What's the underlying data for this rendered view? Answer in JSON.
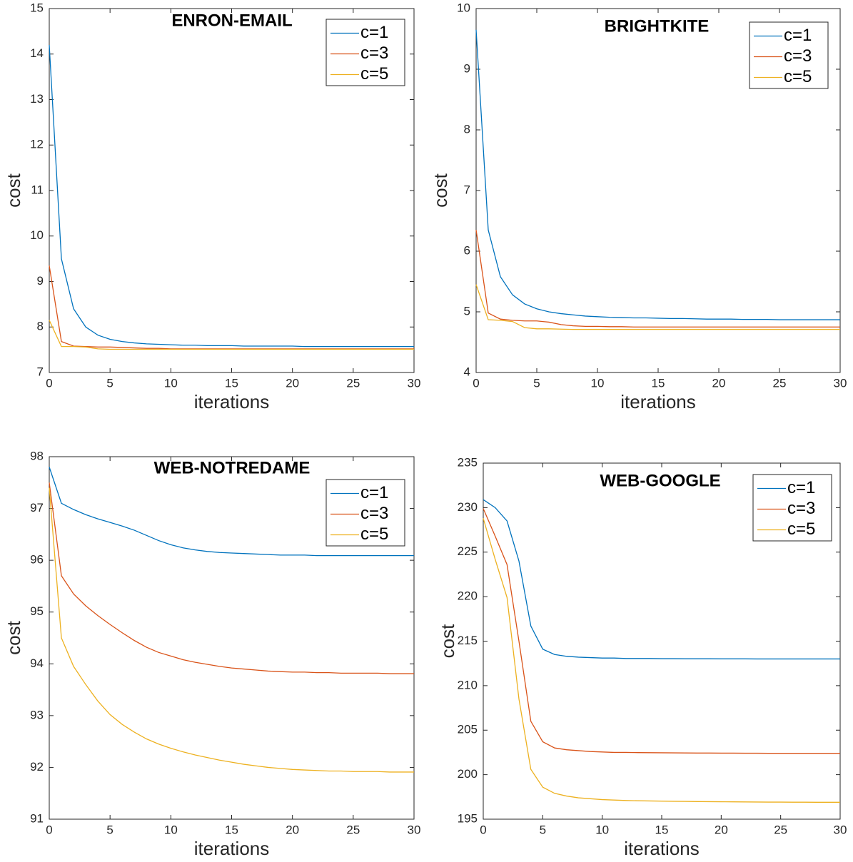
{
  "chart_data": [
    {
      "type": "line",
      "title": "ENRON-EMAIL",
      "xlabel": "iterations",
      "ylabel": "cost",
      "x": [
        0,
        1,
        2,
        3,
        4,
        5,
        6,
        7,
        8,
        9,
        10,
        11,
        12,
        13,
        14,
        15,
        16,
        17,
        18,
        19,
        20,
        21,
        22,
        23,
        24,
        25,
        26,
        27,
        28,
        29,
        30
      ],
      "xlim": [
        0,
        30
      ],
      "xticks": [
        0,
        5,
        10,
        15,
        20,
        25,
        30
      ],
      "ylim": [
        7,
        15
      ],
      "yticks": [
        7,
        8,
        9,
        10,
        11,
        12,
        13,
        14,
        15
      ],
      "legend": "upper right",
      "series": [
        {
          "name": "c=1",
          "color": "#0072bd",
          "values": [
            14.2,
            9.5,
            8.4,
            8.0,
            7.82,
            7.73,
            7.68,
            7.65,
            7.63,
            7.62,
            7.61,
            7.6,
            7.6,
            7.59,
            7.59,
            7.59,
            7.58,
            7.58,
            7.58,
            7.58,
            7.58,
            7.57,
            7.57,
            7.57,
            7.57,
            7.57,
            7.57,
            7.57,
            7.57,
            7.57,
            7.57
          ]
        },
        {
          "name": "c=3",
          "color": "#d95319",
          "values": [
            9.35,
            7.68,
            7.58,
            7.57,
            7.56,
            7.56,
            7.55,
            7.54,
            7.53,
            7.53,
            7.52,
            7.52,
            7.52,
            7.52,
            7.52,
            7.52,
            7.52,
            7.52,
            7.52,
            7.52,
            7.52,
            7.52,
            7.52,
            7.52,
            7.52,
            7.52,
            7.52,
            7.52,
            7.52,
            7.52,
            7.52
          ]
        },
        {
          "name": "c=5",
          "color": "#edb120",
          "values": [
            8.15,
            7.57,
            7.57,
            7.56,
            7.52,
            7.51,
            7.51,
            7.51,
            7.51,
            7.51,
            7.51,
            7.51,
            7.51,
            7.51,
            7.51,
            7.51,
            7.51,
            7.51,
            7.51,
            7.51,
            7.51,
            7.51,
            7.51,
            7.51,
            7.51,
            7.51,
            7.51,
            7.51,
            7.51,
            7.51,
            7.51
          ]
        }
      ]
    },
    {
      "type": "line",
      "title": "BRIGHTKITE",
      "xlabel": "iterations",
      "ylabel": "cost",
      "x": [
        0,
        1,
        2,
        3,
        4,
        5,
        6,
        7,
        8,
        9,
        10,
        11,
        12,
        13,
        14,
        15,
        16,
        17,
        18,
        19,
        20,
        21,
        22,
        23,
        24,
        25,
        26,
        27,
        28,
        29,
        30
      ],
      "xlim": [
        0,
        30
      ],
      "xticks": [
        0,
        5,
        10,
        15,
        20,
        25,
        30
      ],
      "ylim": [
        4,
        10
      ],
      "yticks": [
        4,
        5,
        6,
        7,
        8,
        9,
        10
      ],
      "legend": "upper right",
      "series": [
        {
          "name": "c=1",
          "color": "#0072bd",
          "values": [
            9.65,
            6.35,
            5.58,
            5.28,
            5.13,
            5.05,
            5.0,
            4.97,
            4.95,
            4.93,
            4.92,
            4.91,
            4.905,
            4.9,
            4.9,
            4.895,
            4.89,
            4.89,
            4.885,
            4.88,
            4.88,
            4.88,
            4.875,
            4.875,
            4.875,
            4.87,
            4.87,
            4.87,
            4.87,
            4.87,
            4.87
          ]
        },
        {
          "name": "c=3",
          "color": "#d95319",
          "values": [
            6.35,
            4.98,
            4.88,
            4.86,
            4.85,
            4.85,
            4.83,
            4.79,
            4.77,
            4.76,
            4.76,
            4.755,
            4.755,
            4.75,
            4.75,
            4.75,
            4.75,
            4.75,
            4.75,
            4.75,
            4.75,
            4.75,
            4.75,
            4.75,
            4.75,
            4.75,
            4.75,
            4.75,
            4.75,
            4.75,
            4.75
          ]
        },
        {
          "name": "c=5",
          "color": "#edb120",
          "values": [
            5.45,
            4.87,
            4.86,
            4.84,
            4.74,
            4.72,
            4.72,
            4.715,
            4.71,
            4.71,
            4.71,
            4.71,
            4.71,
            4.71,
            4.71,
            4.71,
            4.71,
            4.71,
            4.71,
            4.71,
            4.71,
            4.71,
            4.71,
            4.71,
            4.71,
            4.71,
            4.71,
            4.71,
            4.71,
            4.71,
            4.71
          ]
        }
      ]
    },
    {
      "type": "line",
      "title": "WEB-NOTREDAME",
      "xlabel": "iterations",
      "ylabel": "cost",
      "x": [
        0,
        1,
        2,
        3,
        4,
        5,
        6,
        7,
        8,
        9,
        10,
        11,
        12,
        13,
        14,
        15,
        16,
        17,
        18,
        19,
        20,
        21,
        22,
        23,
        24,
        25,
        26,
        27,
        28,
        29,
        30
      ],
      "xlim": [
        0,
        30
      ],
      "xticks": [
        0,
        5,
        10,
        15,
        20,
        25,
        30
      ],
      "ylim": [
        91,
        98
      ],
      "yticks": [
        91,
        92,
        93,
        94,
        95,
        96,
        97,
        98
      ],
      "legend": "upper right",
      "series": [
        {
          "name": "c=1",
          "color": "#0072bd",
          "values": [
            97.8,
            97.1,
            96.98,
            96.88,
            96.8,
            96.73,
            96.66,
            96.58,
            96.48,
            96.38,
            96.3,
            96.24,
            96.2,
            96.17,
            96.15,
            96.14,
            96.13,
            96.12,
            96.11,
            96.1,
            96.1,
            96.1,
            96.09,
            96.09,
            96.09,
            96.09,
            96.09,
            96.09,
            96.09,
            96.09,
            96.09
          ]
        },
        {
          "name": "c=3",
          "color": "#d95319",
          "values": [
            97.5,
            95.7,
            95.35,
            95.12,
            94.93,
            94.76,
            94.6,
            94.45,
            94.32,
            94.22,
            94.15,
            94.08,
            94.03,
            93.99,
            93.95,
            93.92,
            93.9,
            93.88,
            93.86,
            93.85,
            93.84,
            93.84,
            93.83,
            93.83,
            93.82,
            93.82,
            93.82,
            93.82,
            93.81,
            93.81,
            93.81
          ]
        },
        {
          "name": "c=5",
          "color": "#edb120",
          "values": [
            97.4,
            94.5,
            93.95,
            93.6,
            93.28,
            93.02,
            92.83,
            92.68,
            92.55,
            92.45,
            92.37,
            92.3,
            92.24,
            92.19,
            92.14,
            92.1,
            92.06,
            92.03,
            92.0,
            91.98,
            91.96,
            91.95,
            91.94,
            91.93,
            91.93,
            91.92,
            91.92,
            91.92,
            91.91,
            91.91,
            91.91
          ]
        }
      ]
    },
    {
      "type": "line",
      "title": "WEB-GOOGLE",
      "xlabel": "iterations",
      "ylabel": "cost",
      "x": [
        0,
        1,
        2,
        3,
        4,
        5,
        6,
        7,
        8,
        9,
        10,
        11,
        12,
        13,
        14,
        15,
        16,
        17,
        18,
        19,
        20,
        21,
        22,
        23,
        24,
        25,
        26,
        27,
        28,
        29,
        30
      ],
      "xlim": [
        0,
        30
      ],
      "xticks": [
        0,
        5,
        10,
        15,
        20,
        25,
        30
      ],
      "ylim": [
        195,
        235
      ],
      "yticks": [
        195,
        200,
        205,
        210,
        215,
        220,
        225,
        230,
        235
      ],
      "legend": "upper right",
      "series": [
        {
          "name": "c=1",
          "color": "#0072bd",
          "values": [
            230.9,
            230.0,
            228.5,
            224,
            216.7,
            214.1,
            213.5,
            213.3,
            213.2,
            213.15,
            213.1,
            213.1,
            213.05,
            213.05,
            213.05,
            213.03,
            213.03,
            213.02,
            213.02,
            213.02,
            213.01,
            213.01,
            213.01,
            213.0,
            213.0,
            213.0,
            213.0,
            213.0,
            213.0,
            213.0,
            213.0
          ]
        },
        {
          "name": "c=3",
          "color": "#d95319",
          "values": [
            229.9,
            226.8,
            223.6,
            215,
            206,
            203.7,
            203.0,
            202.8,
            202.7,
            202.6,
            202.55,
            202.5,
            202.5,
            202.48,
            202.47,
            202.46,
            202.45,
            202.44,
            202.43,
            202.43,
            202.42,
            202.42,
            202.41,
            202.41,
            202.4,
            202.4,
            202.4,
            202.4,
            202.4,
            202.4,
            202.4
          ]
        },
        {
          "name": "c=5",
          "color": "#edb120",
          "values": [
            228.8,
            224.2,
            219.9,
            208.5,
            200.6,
            198.6,
            197.9,
            197.6,
            197.4,
            197.3,
            197.2,
            197.15,
            197.1,
            197.07,
            197.05,
            197.03,
            197.01,
            197.0,
            196.98,
            196.97,
            196.96,
            196.95,
            196.94,
            196.93,
            196.92,
            196.92,
            196.91,
            196.91,
            196.9,
            196.9,
            196.9
          ]
        }
      ]
    }
  ]
}
